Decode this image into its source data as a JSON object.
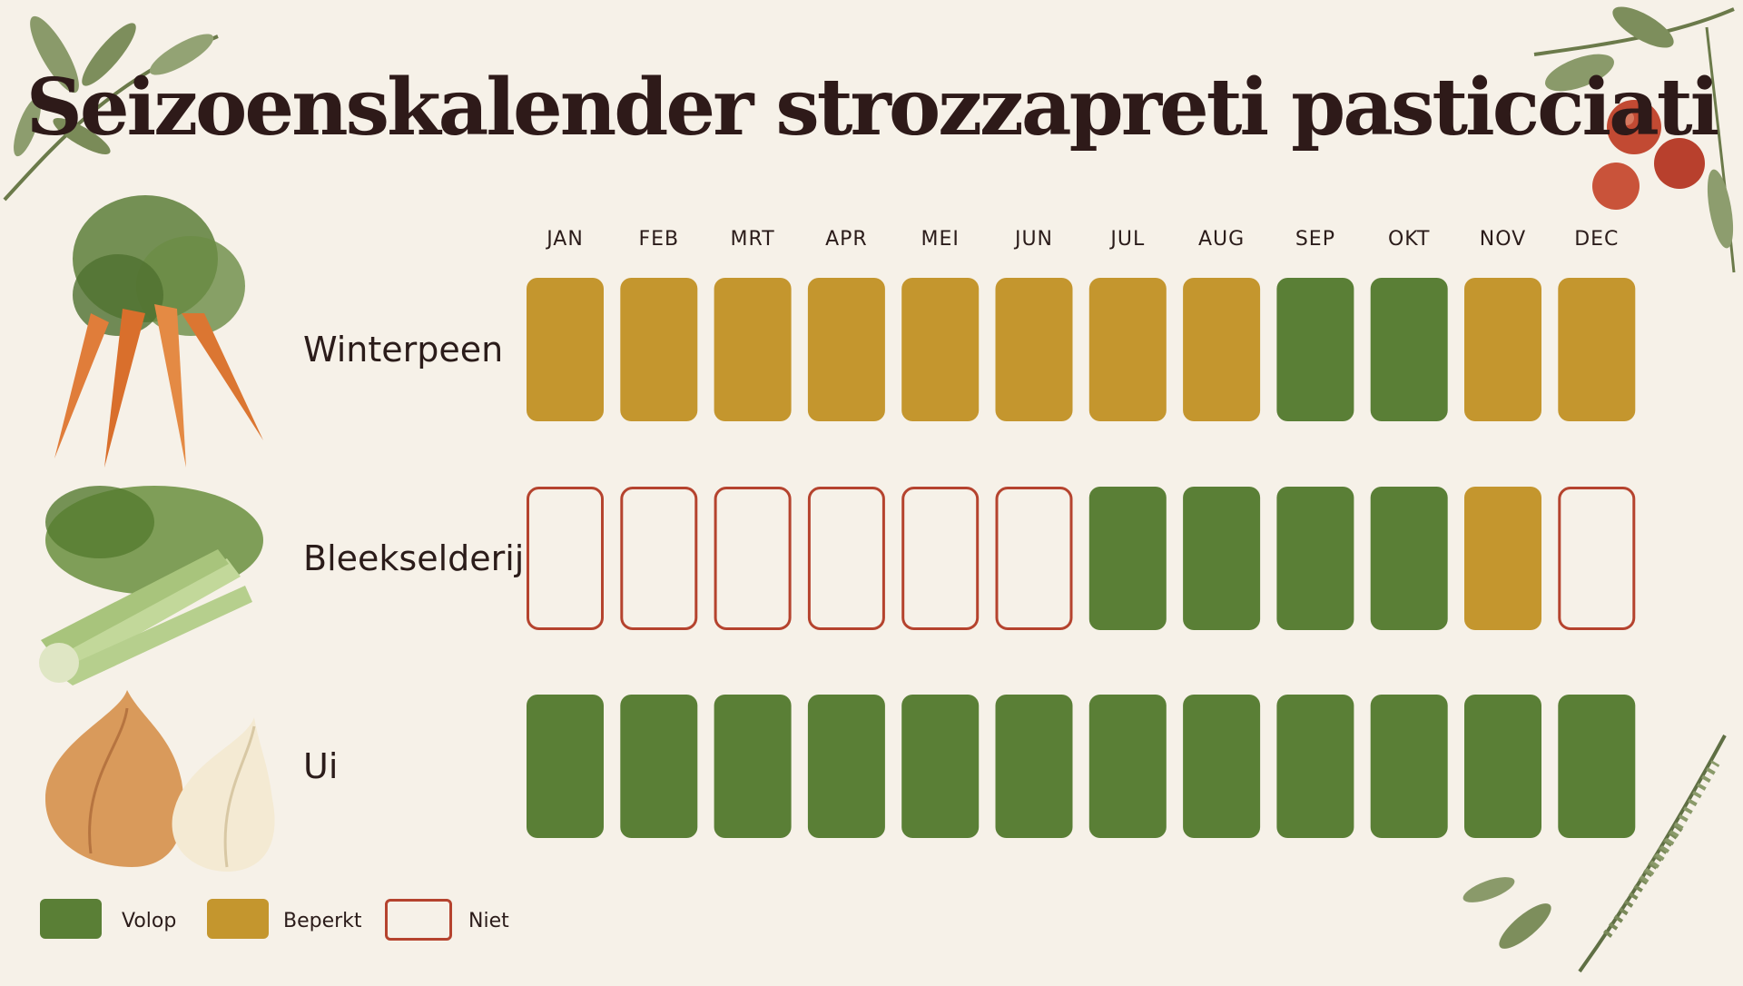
{
  "title": "Seizoenskalender strozzapreti pasticciati",
  "colors": {
    "volop": "#5a7f36",
    "beperkt": "#c4962e",
    "niet_border": "#b5432e",
    "background": "#f6f1e8"
  },
  "chart_data": {
    "type": "heatmap",
    "title": "Seizoenskalender strozzapreti pasticciati",
    "months": [
      "JAN",
      "FEB",
      "MRT",
      "APR",
      "MEI",
      "JUN",
      "JUL",
      "AUG",
      "SEP",
      "OKT",
      "NOV",
      "DEC"
    ],
    "rows": [
      {
        "name": "Winterpeen",
        "values": [
          "beperkt",
          "beperkt",
          "beperkt",
          "beperkt",
          "beperkt",
          "beperkt",
          "beperkt",
          "beperkt",
          "volop",
          "volop",
          "beperkt",
          "beperkt"
        ]
      },
      {
        "name": "Bleekselderij",
        "values": [
          "niet",
          "niet",
          "niet",
          "niet",
          "niet",
          "niet",
          "volop",
          "volop",
          "volop",
          "volop",
          "beperkt",
          "niet"
        ]
      },
      {
        "name": "Ui",
        "values": [
          "volop",
          "volop",
          "volop",
          "volop",
          "volop",
          "volop",
          "volop",
          "volop",
          "volop",
          "volop",
          "volop",
          "volop"
        ]
      }
    ],
    "legend": [
      {
        "key": "volop",
        "label": "Volop"
      },
      {
        "key": "beperkt",
        "label": "Beperkt"
      },
      {
        "key": "niet",
        "label": "Niet"
      }
    ],
    "legend_position": "bottom-left"
  },
  "illustrations": [
    "carrot-illustration",
    "celery-illustration",
    "onion-illustration",
    "leaf-branch-illustration",
    "tomato-branch-illustration",
    "rosemary-illustration"
  ]
}
